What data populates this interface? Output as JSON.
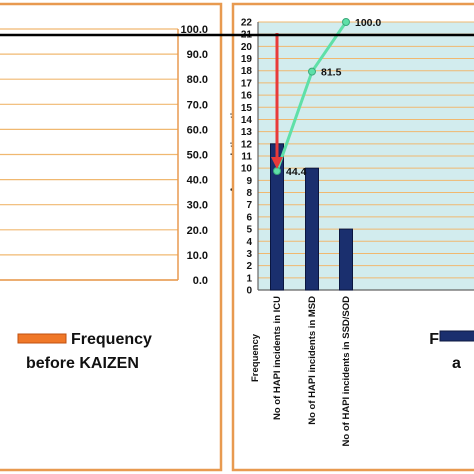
{
  "chart_data": [
    {
      "type": "line",
      "ylabel": "Accumulation ratio",
      "ylim": [
        0,
        100
      ],
      "yticks": [
        "100.0",
        "90.0",
        "80.0",
        "70.0",
        "60.0",
        "50.0",
        "40.0",
        "30.0",
        "20.0",
        "10.0",
        "0.0"
      ],
      "legend": {
        "label_line1": "Frequency",
        "label_line2": "before KAIZEN",
        "color": "#f07828"
      },
      "colors": {
        "frame": "#e89a50",
        "gridline": "#f0b870",
        "plot_bg": "#ffffff"
      }
    },
    {
      "type": "bar",
      "categories": [
        "No of HAPI incidents in ICU",
        "No of HAPI incidents in MSD",
        "No of HAPI incidents in SSD/SOD"
      ],
      "values": [
        12,
        10,
        5
      ],
      "ylim": [
        0,
        22
      ],
      "yticks": [
        "22",
        "21",
        "20",
        "19",
        "18",
        "17",
        "16",
        "15",
        "14",
        "13",
        "12",
        "11",
        "10",
        "9",
        "8",
        "7",
        "6",
        "5",
        "4",
        "3",
        "2",
        "1",
        "0"
      ],
      "ylabel": "Frequency",
      "series": [
        {
          "values": [
            12,
            10,
            5
          ],
          "color": "#1a2f6e"
        },
        {
          "values": [
            44.4,
            81.5,
            100.0
          ],
          "labels": [
            "44.4",
            "81.5",
            "100.0"
          ],
          "color": "#5fe0a8"
        }
      ],
      "legend": {
        "label_line1": "F",
        "label_line2": "a",
        "color": "#1a2f6e"
      },
      "colors": {
        "plot_bg": "#d2ecee",
        "gridline": "#f0b870",
        "arrow": "#e83a3a",
        "frame": "#e89a50",
        "ylabel": "#e83a3a"
      }
    }
  ]
}
